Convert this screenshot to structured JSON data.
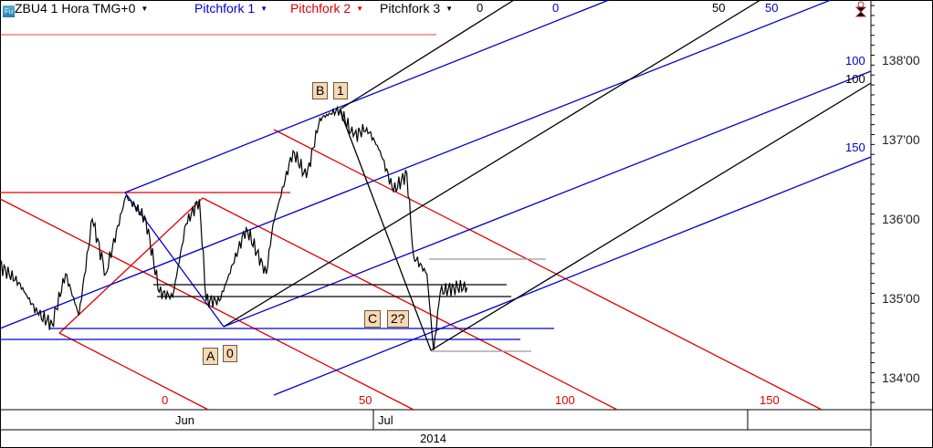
{
  "header": {
    "symbol": "ZBU4 1 Hora TMG+0",
    "pitchfork1": "Pitchfork 1",
    "pitchfork2": "Pitchfork 2",
    "pitchfork3": "Pitchfork 3",
    "icon": "fu-app-icon",
    "dropdown_icon": "triangle-down-icon"
  },
  "colors": {
    "pitchfork1": "#0000cc",
    "pitchfork2": "#e00000",
    "pitchfork3": "#000000",
    "price": "#000000",
    "tag_bg": "#f8d9b5"
  },
  "labels": {
    "B": "B",
    "one": "1",
    "C": "C",
    "two": "2?",
    "A": "A",
    "zero": "0"
  },
  "fork_levels": {
    "pitchfork1": [
      "0",
      "50",
      "100",
      "150"
    ],
    "pitchfork2": [
      "0",
      "50",
      "100",
      "150"
    ],
    "pitchfork3": [
      "0",
      "50",
      "100"
    ]
  },
  "chart_data": {
    "type": "line",
    "title": "",
    "y_ticks": [
      "138'00",
      "137'00",
      "136'00",
      "135'00",
      "134'00"
    ],
    "ylim": [
      133.6,
      138.8
    ],
    "x_ticks": [
      "Jun",
      "Jul"
    ],
    "year": "2014",
    "grid": false,
    "series": [
      {
        "values": [
          [
            "2014-05-06",
            135.44
          ],
          [
            "2014-05-09",
            135.21
          ],
          [
            "2014-05-12",
            134.8
          ],
          [
            "2014-05-14",
            134.69
          ],
          [
            "2014-05-16",
            135.32
          ],
          [
            "2014-05-18",
            134.8
          ],
          [
            "2014-05-20",
            136.01
          ],
          [
            "2014-05-22",
            135.32
          ],
          [
            "2014-05-25",
            136.3
          ],
          [
            "2014-05-28",
            136.01
          ],
          [
            "2014-05-30",
            135.09
          ],
          [
            "2014-06-01",
            135.03
          ],
          [
            "2014-06-03",
            135.95
          ],
          [
            "2014-06-05",
            136.26
          ],
          [
            "2014-06-06",
            134.98
          ],
          [
            "2014-06-08",
            134.98
          ],
          [
            "2014-06-10",
            135.44
          ],
          [
            "2014-06-12",
            135.9
          ],
          [
            "2014-06-15",
            135.32
          ],
          [
            "2014-06-16",
            135.95
          ],
          [
            "2014-06-19",
            136.87
          ],
          [
            "2014-06-21",
            136.53
          ],
          [
            "2014-06-23",
            137.28
          ],
          [
            "2014-06-26",
            137.39
          ],
          [
            "2014-06-28",
            137.05
          ],
          [
            "2014-06-30",
            137.16
          ],
          [
            "2014-07-02",
            136.87
          ],
          [
            "2014-07-04",
            136.36
          ],
          [
            "2014-07-06",
            136.59
          ],
          [
            "2014-07-07",
            135.55
          ],
          [
            "2014-07-09",
            135.32
          ],
          [
            "2014-07-10",
            134.36
          ],
          [
            "2014-07-11",
            135.09
          ],
          [
            "2014-07-13",
            135.15
          ],
          [
            "2014-07-15",
            135.15
          ]
        ]
      }
    ]
  }
}
